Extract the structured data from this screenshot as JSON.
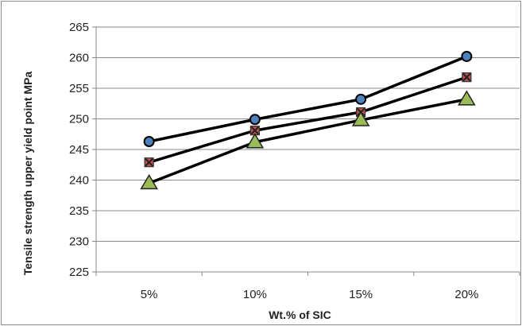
{
  "chart_data": {
    "type": "line",
    "title": "",
    "xlabel": "Wt.% of SIC",
    "ylabel": "Tensile strength upper yield point MPa",
    "categories": [
      "5%",
      "10%",
      "15%",
      "20%"
    ],
    "ylim": [
      225,
      265
    ],
    "yticks": [
      225,
      230,
      235,
      240,
      245,
      250,
      255,
      260,
      265
    ],
    "grid": "horizontal",
    "legend": "none",
    "series": [
      {
        "marker": "circle",
        "color": "#000000",
        "marker_fill": "#4f81bd",
        "values": [
          246.3,
          249.9,
          253.2,
          260.2
        ]
      },
      {
        "marker": "square-x",
        "color": "#000000",
        "marker_fill": "#c0504d",
        "values": [
          242.9,
          248.1,
          251.1,
          256.8
        ]
      },
      {
        "marker": "triangle",
        "color": "#000000",
        "marker_fill": "#9bbb59",
        "values": [
          239.5,
          246.2,
          249.8,
          253.2
        ]
      }
    ]
  }
}
